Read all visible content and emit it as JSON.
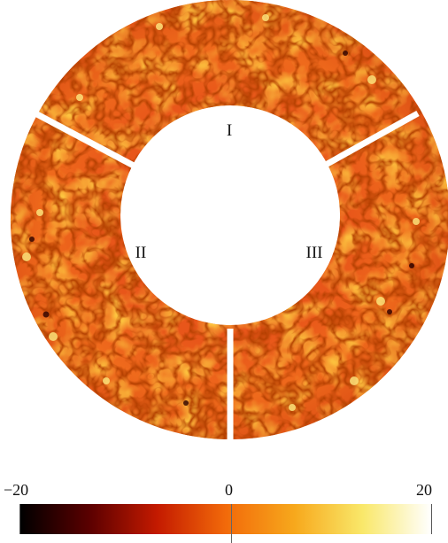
{
  "figure": {
    "sectors": [
      {
        "id": "sector-1",
        "label": "I"
      },
      {
        "id": "sector-2",
        "label": "II"
      },
      {
        "id": "sector-3",
        "label": "III"
      }
    ],
    "colorbar": {
      "min_label": "−20",
      "mid_label": "0",
      "max_label": "20",
      "colors": [
        "#000000",
        "#5a0000",
        "#c41a00",
        "#f26a0a",
        "#f7a81c",
        "#f9e86a",
        "#ffffff"
      ]
    }
  }
}
